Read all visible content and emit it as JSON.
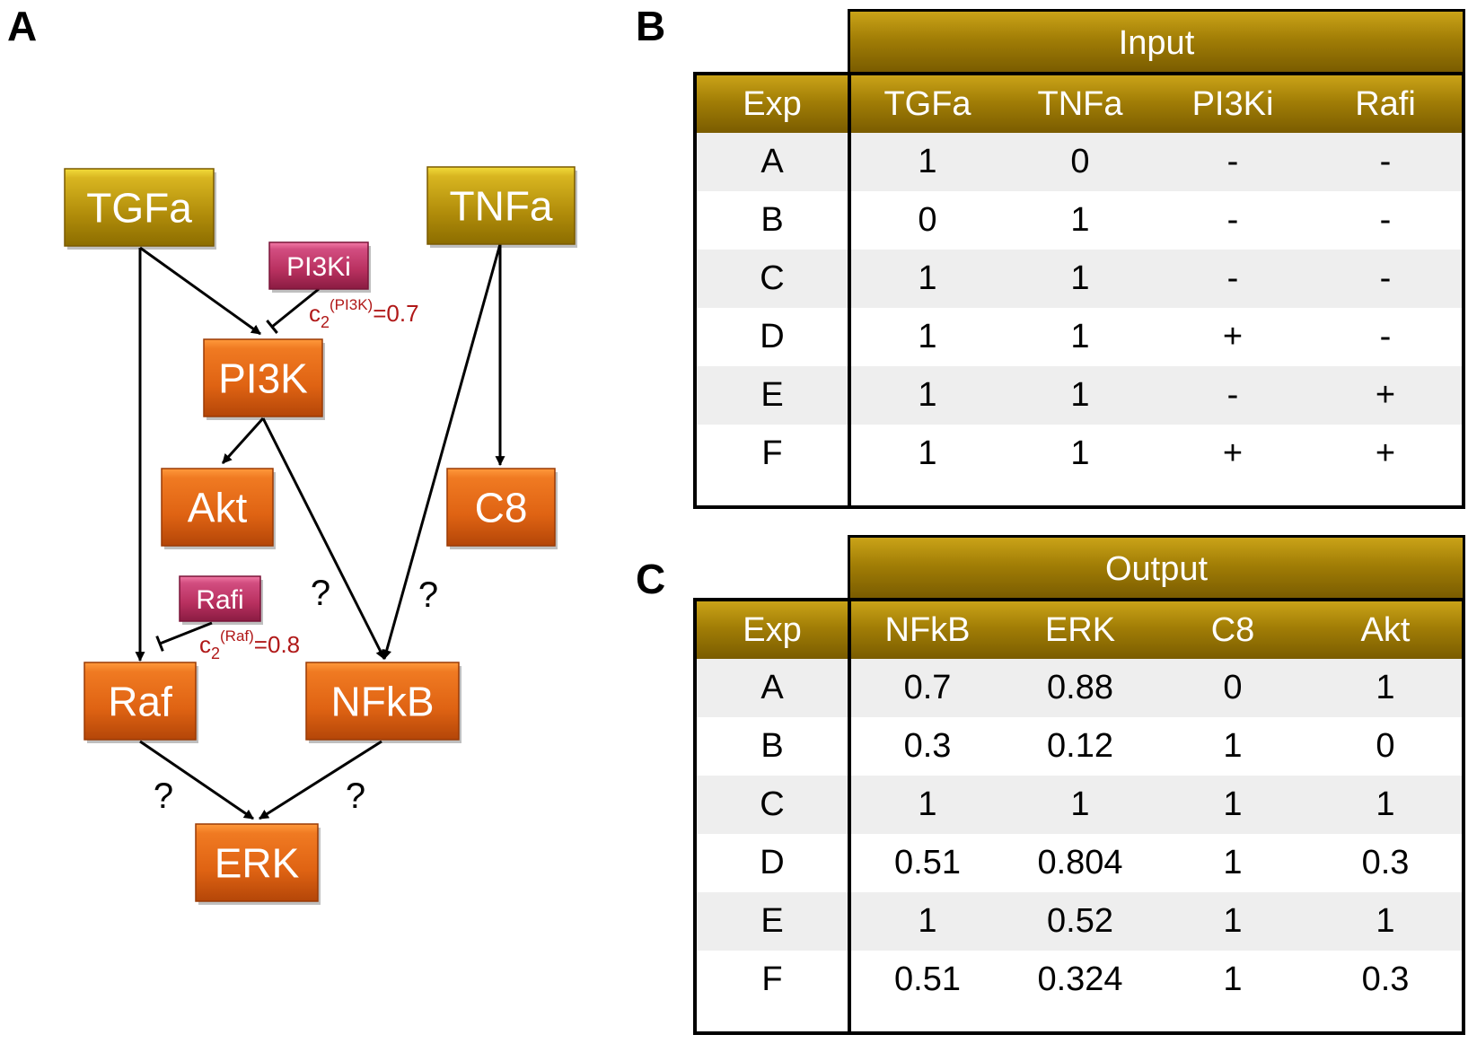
{
  "panels": {
    "a": "A",
    "b": "B",
    "c": "C"
  },
  "colors": {
    "input_node": "#c9a418",
    "protein_node": "#e8661a",
    "inhibitor_node": "#c23a6a",
    "param_text": "#b01818",
    "table_header": "#a27e06"
  },
  "diagram": {
    "nodes": [
      {
        "id": "TGFa",
        "label": "TGFa",
        "kind": "input"
      },
      {
        "id": "TNFa",
        "label": "TNFa",
        "kind": "input"
      },
      {
        "id": "PI3Ki",
        "label": "PI3Ki",
        "kind": "inhibitor"
      },
      {
        "id": "PI3K",
        "label": "PI3K",
        "kind": "protein"
      },
      {
        "id": "Akt",
        "label": "Akt",
        "kind": "protein"
      },
      {
        "id": "C8",
        "label": "C8",
        "kind": "protein"
      },
      {
        "id": "Rafi",
        "label": "Rafi",
        "kind": "inhibitor"
      },
      {
        "id": "Raf",
        "label": "Raf",
        "kind": "protein"
      },
      {
        "id": "NFkB",
        "label": "NFkB",
        "kind": "protein"
      },
      {
        "id": "ERK",
        "label": "ERK",
        "kind": "protein"
      }
    ],
    "edges": [
      {
        "from": "TGFa",
        "to": "PI3K",
        "type": "activation"
      },
      {
        "from": "TGFa",
        "to": "Raf",
        "type": "activation"
      },
      {
        "from": "TNFa",
        "to": "C8",
        "type": "activation"
      },
      {
        "from": "TNFa",
        "to": "NFkB",
        "type": "activation",
        "label": "?"
      },
      {
        "from": "PI3K",
        "to": "Akt",
        "type": "activation"
      },
      {
        "from": "PI3K",
        "to": "NFkB",
        "type": "activation",
        "label": "?"
      },
      {
        "from": "Raf",
        "to": "ERK",
        "type": "activation",
        "label": "?"
      },
      {
        "from": "NFkB",
        "to": "ERK",
        "type": "activation",
        "label": "?"
      },
      {
        "from": "PI3Ki",
        "to": "PI3K",
        "type": "inhibition"
      },
      {
        "from": "Rafi",
        "to": "Raf",
        "type": "inhibition"
      }
    ],
    "params": [
      {
        "base": "c",
        "sub": "2",
        "sup": "(PI3K)",
        "value": "=0.7"
      },
      {
        "base": "c",
        "sub": "2",
        "sup": "(Raf)",
        "value": "=0.8"
      }
    ]
  },
  "input_table": {
    "title": "Input",
    "headers": [
      "Exp",
      "TGFa",
      "TNFa",
      "PI3Ki",
      "Rafi"
    ],
    "rows": [
      [
        "A",
        "1",
        "0",
        "-",
        "-"
      ],
      [
        "B",
        "0",
        "1",
        "-",
        "-"
      ],
      [
        "C",
        "1",
        "1",
        "-",
        "-"
      ],
      [
        "D",
        "1",
        "1",
        "+",
        "-"
      ],
      [
        "E",
        "1",
        "1",
        "-",
        "+"
      ],
      [
        "F",
        "1",
        "1",
        "+",
        "+"
      ]
    ]
  },
  "output_table": {
    "title": "Output",
    "headers": [
      "Exp",
      "NFkB",
      "ERK",
      "C8",
      "Akt"
    ],
    "rows": [
      [
        "A",
        "0.7",
        "0.88",
        "0",
        "1"
      ],
      [
        "B",
        "0.3",
        "0.12",
        "1",
        "0"
      ],
      [
        "C",
        "1",
        "1",
        "1",
        "1"
      ],
      [
        "D",
        "0.51",
        "0.804",
        "1",
        "0.3"
      ],
      [
        "E",
        "1",
        "0.52",
        "1",
        "1"
      ],
      [
        "F",
        "0.51",
        "0.324",
        "1",
        "0.3"
      ]
    ]
  }
}
